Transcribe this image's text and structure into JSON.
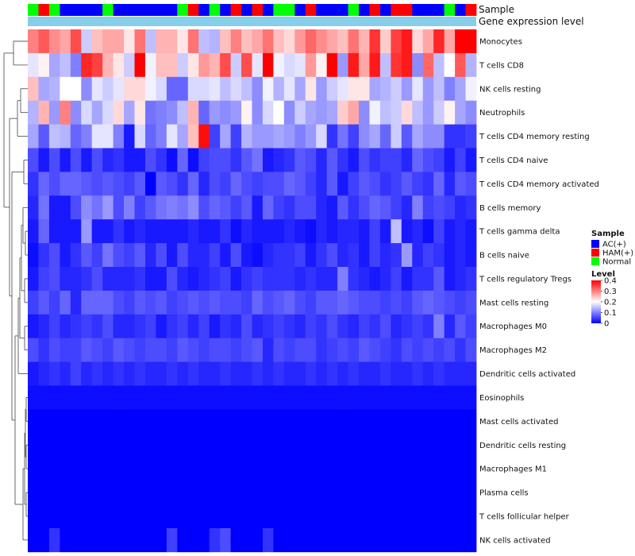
{
  "chart_data": {
    "type": "heatmap",
    "annotation_tracks": [
      "Sample",
      "Gene expression level"
    ],
    "sample_groups": [
      "N",
      "H",
      "N",
      "A",
      "A",
      "A",
      "A",
      "N",
      "A",
      "A",
      "A",
      "A",
      "A",
      "A",
      "N",
      "H",
      "A",
      "N",
      "A",
      "H",
      "A",
      "H",
      "A",
      "N",
      "N",
      "A",
      "H",
      "A",
      "A",
      "A",
      "N",
      "A",
      "H",
      "A",
      "H",
      "H",
      "A",
      "A",
      "A",
      "N",
      "A",
      "H"
    ],
    "rows": [
      "Monocytes",
      "T cells CD8",
      "NK cells resting",
      "Neutrophils",
      "T cells CD4 memory resting",
      "T cells CD4 naive",
      "T cells CD4 memory activated",
      "B cells memory",
      "T cells gamma delta",
      "B cells naive",
      "T cells regulatory  Tregs",
      "Mast cells resting",
      "Macrophages M0",
      "Macrophages M2",
      "Dendritic cells activated",
      "Eosinophils",
      "Mast cells activated",
      "Dendritic cells resting",
      "Macrophages M1",
      "Plasma cells",
      "T cells follicular helper",
      "NK cells activated"
    ],
    "values": [
      [
        0.3,
        0.33,
        0.29,
        0.27,
        0.34,
        0.16,
        0.25,
        0.27,
        0.27,
        0.22,
        0.31,
        0.15,
        0.26,
        0.26,
        0.22,
        0.31,
        0.15,
        0.14,
        0.25,
        0.3,
        0.25,
        0.27,
        0.31,
        0.25,
        0.23,
        0.28,
        0.32,
        0.29,
        0.27,
        0.25,
        0.31,
        0.26,
        0.36,
        0.24,
        0.35,
        0.38,
        0.23,
        0.27,
        0.37,
        0.27,
        0.41,
        0.4
      ],
      [
        0.18,
        0.21,
        0.13,
        0.15,
        0.1,
        0.37,
        0.35,
        0.26,
        0.22,
        0.16,
        0.4,
        0.19,
        0.25,
        0.25,
        0.16,
        0.22,
        0.28,
        0.26,
        0.34,
        0.16,
        0.34,
        0.18,
        0.4,
        0.19,
        0.17,
        0.18,
        0.28,
        0.21,
        0.4,
        0.12,
        0.38,
        0.27,
        0.38,
        0.15,
        0.36,
        0.38,
        0.11,
        0.32,
        0.15,
        0.2,
        0.33,
        0.14
      ],
      [
        0.25,
        0.13,
        0.14,
        0.2,
        0.2,
        0.11,
        0.18,
        0.16,
        0.18,
        0.23,
        0.23,
        0.19,
        0.17,
        0.08,
        0.08,
        0.17,
        0.17,
        0.18,
        0.15,
        0.17,
        0.15,
        0.11,
        0.19,
        0.14,
        0.18,
        0.13,
        0.22,
        0.12,
        0.16,
        0.18,
        0.22,
        0.22,
        0.13,
        0.14,
        0.16,
        0.12,
        0.18,
        0.12,
        0.15,
        0.1,
        0.13,
        0.19
      ],
      [
        0.14,
        0.26,
        0.12,
        0.3,
        0.11,
        0.17,
        0.13,
        0.17,
        0.23,
        0.13,
        0.22,
        0.09,
        0.1,
        0.11,
        0.15,
        0.26,
        0.08,
        0.12,
        0.11,
        0.12,
        0.21,
        0.11,
        0.17,
        0.2,
        0.11,
        0.16,
        0.13,
        0.12,
        0.13,
        0.24,
        0.27,
        0.11,
        0.19,
        0.15,
        0.16,
        0.23,
        0.15,
        0.12,
        0.16,
        0.21,
        0.13,
        0.11
      ],
      [
        0.13,
        0.07,
        0.15,
        0.14,
        0.08,
        0.1,
        0.18,
        0.18,
        0.1,
        0.02,
        0.17,
        0.08,
        0.1,
        0.18,
        0.13,
        0.25,
        0.39,
        0.05,
        0.13,
        0.05,
        0.14,
        0.12,
        0.12,
        0.13,
        0.12,
        0.1,
        0.12,
        0.17,
        0.04,
        0.09,
        0.05,
        0.11,
        0.13,
        0.08,
        0.16,
        0.07,
        0.13,
        0.11,
        0.11,
        0.04,
        0.04,
        0.05
      ],
      [
        0.06,
        0.02,
        0.06,
        0.02,
        0.06,
        0.02,
        0.06,
        0.03,
        0.04,
        0.02,
        0.02,
        0.06,
        0.04,
        0.01,
        0.08,
        0.01,
        0.05,
        0.06,
        0.06,
        0.04,
        0.07,
        0.09,
        0.02,
        0.03,
        0.04,
        0.07,
        0.06,
        0.03,
        0.07,
        0.04,
        0.02,
        0.06,
        0.04,
        0.05,
        0.05,
        0.03,
        0.08,
        0.06,
        0.05,
        0.02,
        0.05,
        0.02
      ],
      [
        0.04,
        0.08,
        0.06,
        0.08,
        0.08,
        0.07,
        0.06,
        0.07,
        0.06,
        0.05,
        0.07,
        0.0,
        0.07,
        0.06,
        0.04,
        0.08,
        0.03,
        0.06,
        0.05,
        0.08,
        0.06,
        0.05,
        0.06,
        0.06,
        0.08,
        0.07,
        0.05,
        0.03,
        0.07,
        0.02,
        0.05,
        0.07,
        0.06,
        0.04,
        0.05,
        0.07,
        0.05,
        0.04,
        0.08,
        0.03,
        0.07,
        0.06
      ],
      [
        0.03,
        0.09,
        0.02,
        0.02,
        0.06,
        0.11,
        0.09,
        0.12,
        0.06,
        0.1,
        0.05,
        0.07,
        0.09,
        0.1,
        0.09,
        0.11,
        0.06,
        0.08,
        0.07,
        0.05,
        0.07,
        0.02,
        0.08,
        0.05,
        0.04,
        0.06,
        0.06,
        0.03,
        0.02,
        0.07,
        0.04,
        0.06,
        0.08,
        0.07,
        0.05,
        0.03,
        0.1,
        0.05,
        0.06,
        0.05,
        0.03,
        0.04
      ],
      [
        0.02,
        0.08,
        0.02,
        0.02,
        0.02,
        0.12,
        0.02,
        0.02,
        0.04,
        0.02,
        0.03,
        0.02,
        0.02,
        0.02,
        0.02,
        0.03,
        0.02,
        0.02,
        0.04,
        0.01,
        0.03,
        0.02,
        0.02,
        0.02,
        0.03,
        0.02,
        0.01,
        0.03,
        0.02,
        0.03,
        0.03,
        0.02,
        0.05,
        0.02,
        0.15,
        0.02,
        0.03,
        0.01,
        0.05,
        0.02,
        0.03,
        0.02
      ],
      [
        0.01,
        0.04,
        0.06,
        0.02,
        0.04,
        0.07,
        0.05,
        0.09,
        0.06,
        0.05,
        0.07,
        0.03,
        0.06,
        0.02,
        0.06,
        0.03,
        0.03,
        0.05,
        0.02,
        0.06,
        0.02,
        0.01,
        0.03,
        0.04,
        0.04,
        0.05,
        0.02,
        0.04,
        0.06,
        0.03,
        0.04,
        0.02,
        0.05,
        0.03,
        0.04,
        0.12,
        0.03,
        0.05,
        0.04,
        0.02,
        0.03,
        0.02
      ],
      [
        0.02,
        0.05,
        0.06,
        0.03,
        0.03,
        0.04,
        0.06,
        0.03,
        0.03,
        0.03,
        0.04,
        0.02,
        0.02,
        0.06,
        0.03,
        0.02,
        0.03,
        0.04,
        0.05,
        0.02,
        0.04,
        0.05,
        0.04,
        0.04,
        0.04,
        0.03,
        0.04,
        0.03,
        0.03,
        0.1,
        0.04,
        0.03,
        0.02,
        0.03,
        0.05,
        0.02,
        0.04,
        0.04,
        0.07,
        0.02,
        0.03,
        0.04
      ],
      [
        0.05,
        0.07,
        0.05,
        0.08,
        0.03,
        0.08,
        0.08,
        0.08,
        0.06,
        0.05,
        0.07,
        0.06,
        0.07,
        0.05,
        0.06,
        0.07,
        0.06,
        0.07,
        0.06,
        0.06,
        0.05,
        0.08,
        0.06,
        0.07,
        0.08,
        0.06,
        0.05,
        0.07,
        0.07,
        0.08,
        0.07,
        0.06,
        0.06,
        0.05,
        0.06,
        0.05,
        0.07,
        0.08,
        0.07,
        0.06,
        0.05,
        0.06
      ],
      [
        0.02,
        0.03,
        0.05,
        0.03,
        0.04,
        0.05,
        0.04,
        0.06,
        0.03,
        0.03,
        0.04,
        0.05,
        0.02,
        0.04,
        0.05,
        0.03,
        0.05,
        0.02,
        0.04,
        0.03,
        0.06,
        0.03,
        0.04,
        0.05,
        0.04,
        0.03,
        0.05,
        0.04,
        0.06,
        0.04,
        0.03,
        0.05,
        0.04,
        0.06,
        0.03,
        0.04,
        0.05,
        0.04,
        0.1,
        0.03,
        0.07,
        0.05
      ],
      [
        0.06,
        0.04,
        0.06,
        0.05,
        0.05,
        0.07,
        0.06,
        0.05,
        0.07,
        0.06,
        0.05,
        0.06,
        0.06,
        0.05,
        0.07,
        0.06,
        0.05,
        0.06,
        0.06,
        0.05,
        0.06,
        0.07,
        0.03,
        0.06,
        0.05,
        0.06,
        0.06,
        0.04,
        0.05,
        0.06,
        0.05,
        0.07,
        0.06,
        0.05,
        0.04,
        0.06,
        0.05,
        0.06,
        0.05,
        0.06,
        0.04,
        0.06
      ],
      [
        0.02,
        0.03,
        0.04,
        0.03,
        0.05,
        0.03,
        0.04,
        0.03,
        0.04,
        0.03,
        0.04,
        0.03,
        0.03,
        0.04,
        0.03,
        0.04,
        0.03,
        0.03,
        0.04,
        0.03,
        0.03,
        0.04,
        0.03,
        0.04,
        0.03,
        0.03,
        0.04,
        0.03,
        0.04,
        0.03,
        0.04,
        0.03,
        0.03,
        0.04,
        0.03,
        0.03,
        0.04,
        0.03,
        0.04,
        0.03,
        0.03,
        0.03
      ],
      [
        0.01,
        0.01,
        0.01,
        0.01,
        0.01,
        0.01,
        0.01,
        0.01,
        0.01,
        0.01,
        0.01,
        0.01,
        0.01,
        0.01,
        0.01,
        0.01,
        0.01,
        0.01,
        0.01,
        0.01,
        0.01,
        0.01,
        0.01,
        0.01,
        0.01,
        0.01,
        0.01,
        0.01,
        0.01,
        0.01,
        0.01,
        0.01,
        0.01,
        0.01,
        0.01,
        0.01,
        0.01,
        0.01,
        0.01,
        0.01,
        0.01,
        0.01
      ],
      [
        0.0,
        0.0,
        0.0,
        0.0,
        0.0,
        0.0,
        0.0,
        0.0,
        0.0,
        0.0,
        0.0,
        0.0,
        0.0,
        0.0,
        0.0,
        0.0,
        0.0,
        0.0,
        0.0,
        0.0,
        0.0,
        0.0,
        0.0,
        0.0,
        0.0,
        0.0,
        0.0,
        0.0,
        0.0,
        0.0,
        0.0,
        0.0,
        0.0,
        0.0,
        0.0,
        0.0,
        0.0,
        0.0,
        0.0,
        0.0,
        0.0,
        0.0
      ],
      [
        0.0,
        0.0,
        0.0,
        0.0,
        0.0,
        0.0,
        0.0,
        0.0,
        0.0,
        0.0,
        0.0,
        0.0,
        0.0,
        0.0,
        0.0,
        0.0,
        0.0,
        0.0,
        0.0,
        0.0,
        0.0,
        0.0,
        0.0,
        0.0,
        0.0,
        0.0,
        0.0,
        0.0,
        0.0,
        0.0,
        0.0,
        0.0,
        0.0,
        0.0,
        0.0,
        0.0,
        0.0,
        0.0,
        0.0,
        0.0,
        0.0,
        0.0
      ],
      [
        0.0,
        0.0,
        0.0,
        0.0,
        0.0,
        0.0,
        0.0,
        0.0,
        0.0,
        0.0,
        0.0,
        0.0,
        0.0,
        0.0,
        0.0,
        0.0,
        0.0,
        0.0,
        0.0,
        0.0,
        0.0,
        0.0,
        0.0,
        0.0,
        0.0,
        0.0,
        0.0,
        0.0,
        0.0,
        0.0,
        0.0,
        0.0,
        0.0,
        0.0,
        0.0,
        0.0,
        0.0,
        0.0,
        0.0,
        0.0,
        0.0,
        0.0
      ],
      [
        0.0,
        0.0,
        0.0,
        0.0,
        0.0,
        0.0,
        0.0,
        0.0,
        0.0,
        0.0,
        0.0,
        0.0,
        0.0,
        0.0,
        0.0,
        0.0,
        0.0,
        0.0,
        0.0,
        0.0,
        0.0,
        0.0,
        0.0,
        0.0,
        0.0,
        0.0,
        0.0,
        0.0,
        0.0,
        0.0,
        0.0,
        0.0,
        0.0,
        0.0,
        0.0,
        0.0,
        0.0,
        0.0,
        0.0,
        0.0,
        0.0,
        0.0
      ],
      [
        0.0,
        0.0,
        0.0,
        0.0,
        0.0,
        0.0,
        0.0,
        0.0,
        0.0,
        0.0,
        0.0,
        0.0,
        0.0,
        0.0,
        0.0,
        0.0,
        0.0,
        0.0,
        0.0,
        0.0,
        0.0,
        0.0,
        0.0,
        0.0,
        0.0,
        0.0,
        0.0,
        0.0,
        0.0,
        0.0,
        0.0,
        0.0,
        0.0,
        0.0,
        0.0,
        0.0,
        0.0,
        0.0,
        0.0,
        0.0,
        0.0,
        0.0
      ],
      [
        0.0,
        0.0,
        0.04,
        0.0,
        0.0,
        0.0,
        0.0,
        0.0,
        0.0,
        0.0,
        0.0,
        0.0,
        0.0,
        0.05,
        0.0,
        0.0,
        0.0,
        0.04,
        0.06,
        0.0,
        0.0,
        0.0,
        0.04,
        0.0,
        0.0,
        0.0,
        0.0,
        0.0,
        0.0,
        0.0,
        0.0,
        0.0,
        0.0,
        0.0,
        0.0,
        0.0,
        0.0,
        0.0,
        0.0,
        0.0,
        0.0,
        0.0
      ]
    ],
    "color_scale": {
      "min": 0,
      "mid": 0.2,
      "max": 0.4,
      "low": "#0000ff",
      "mid_color": "#ffffff",
      "high": "#ff0000"
    },
    "expression_bar_color": "#87ceeb",
    "legend": {
      "sample_title": "Sample",
      "sample_items": [
        {
          "key": "A",
          "label": "AC(+)",
          "color": "#0000ff"
        },
        {
          "key": "H",
          "label": "HAM(+)",
          "color": "#ff0000"
        },
        {
          "key": "N",
          "label": "Normal",
          "color": "#00ff00"
        }
      ],
      "level_title": "Level",
      "level_ticks": [
        "0.4",
        "0.3",
        "0.2",
        "0.1",
        "0"
      ],
      "level_tick_values": [
        0.4,
        0.3,
        0.2,
        0.1,
        0
      ],
      "placement": "right"
    }
  }
}
